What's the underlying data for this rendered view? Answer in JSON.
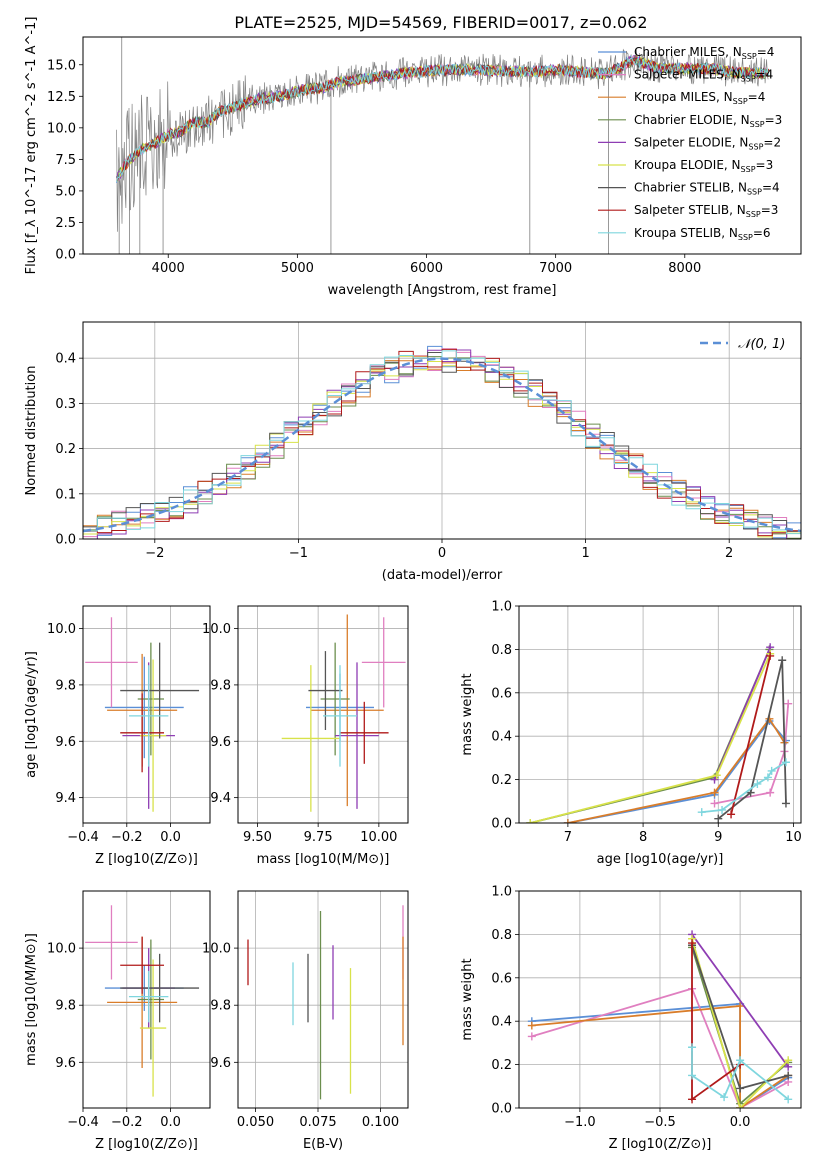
{
  "figure_title": "PLATE=2525, MJD=54569, FIBERID=0017, z=0.062",
  "series_styles": [
    {
      "name": "Chabrier MILES, N_SSP=4",
      "color": "#5B8FD6"
    },
    {
      "name": "Salpeter MILES, N_SSP=4",
      "color": "#E07FC0"
    },
    {
      "name": "Kroupa MILES, N_SSP=4",
      "color": "#D97D2A"
    },
    {
      "name": "Chabrier ELODIE, N_SSP=3",
      "color": "#6B8E4E"
    },
    {
      "name": "Salpeter ELODIE, N_SSP=2",
      "color": "#8E3DB3"
    },
    {
      "name": "Kroupa ELODIE, N_SSP=3",
      "color": "#D8E24A"
    },
    {
      "name": "Chabrier STELIB, N_SSP=4",
      "color": "#555555"
    },
    {
      "name": "Salpeter STELIB, N_SSP=3",
      "color": "#B01A1A"
    },
    {
      "name": "Kroupa STELIB, N_SSP=6",
      "color": "#7FD6DE"
    }
  ],
  "chart_data": [
    {
      "id": "spectrum",
      "type": "line",
      "xlabel": "wavelength [Angstrom, rest frame]",
      "ylabel": "Flux [f_λ 10^-17 erg cm^-2 s^-1 A^-1]",
      "xlim": [
        3340,
        8900
      ],
      "ylim": [
        0,
        17.2
      ],
      "xticks": [
        "4000",
        "5000",
        "6000",
        "7000",
        "8000"
      ],
      "xtick_values": [
        4000,
        5000,
        6000,
        7000,
        8000
      ],
      "yticks": [
        "0.0",
        "2.5",
        "5.0",
        "7.5",
        "10.0",
        "12.5",
        "15.0"
      ],
      "ytick_values": [
        0,
        2.5,
        5,
        7.5,
        10,
        12.5,
        15
      ],
      "legend": {
        "placement": "right",
        "entries": [
          {
            "label": "Chabrier MILES, N",
            "sub": "SSP",
            "suffix": "=4"
          },
          {
            "label": "Salpeter MILES, N",
            "sub": "SSP",
            "suffix": "=4"
          },
          {
            "label": "Kroupa MILES, N",
            "sub": "SSP",
            "suffix": "=4"
          },
          {
            "label": "Chabrier ELODIE, N",
            "sub": "SSP",
            "suffix": "=3"
          },
          {
            "label": "Salpeter ELODIE, N",
            "sub": "SSP",
            "suffix": "=2"
          },
          {
            "label": "Kroupa ELODIE, N",
            "sub": "SSP",
            "suffix": "=3"
          },
          {
            "label": "Chabrier STELIB, N",
            "sub": "SSP",
            "suffix": "=4"
          },
          {
            "label": "Salpeter STELIB, N",
            "sub": "SSP",
            "suffix": "=3"
          },
          {
            "label": "Kroupa STELIB, N",
            "sub": "SSP",
            "suffix": "=6"
          }
        ]
      },
      "observed_color": "#808080",
      "continuum_model": [
        [
          3600,
          6.0
        ],
        [
          3700,
          7.5
        ],
        [
          3800,
          8.3
        ],
        [
          3900,
          8.8
        ],
        [
          4000,
          9.5
        ],
        [
          4100,
          9.7
        ],
        [
          4200,
          10.5
        ],
        [
          4300,
          10.4
        ],
        [
          4400,
          11.3
        ],
        [
          4500,
          11.6
        ],
        [
          4600,
          12.0
        ],
        [
          4700,
          12.3
        ],
        [
          4800,
          12.4
        ],
        [
          4900,
          12.6
        ],
        [
          5000,
          12.9
        ],
        [
          5100,
          13.1
        ],
        [
          5200,
          13.2
        ],
        [
          5300,
          13.6
        ],
        [
          5400,
          13.7
        ],
        [
          5500,
          13.9
        ],
        [
          5600,
          14.0
        ],
        [
          5800,
          14.3
        ],
        [
          6000,
          14.5
        ],
        [
          6200,
          14.6
        ],
        [
          6400,
          14.6
        ],
        [
          6600,
          14.5
        ],
        [
          6800,
          14.4
        ],
        [
          7000,
          14.6
        ],
        [
          7200,
          14.4
        ],
        [
          7400,
          14.3
        ],
        [
          7600,
          15.4
        ],
        [
          7800,
          14.7
        ],
        [
          8000,
          14.7
        ],
        [
          8200,
          14.7
        ],
        [
          8400,
          14.4
        ],
        [
          8650,
          14.3
        ]
      ],
      "spikes": [
        [
          3620,
          0
        ],
        [
          3640,
          17.2
        ],
        [
          3700,
          0
        ],
        [
          3780,
          0
        ],
        [
          3960,
          0
        ],
        [
          5260,
          0
        ],
        [
          6800,
          0
        ],
        [
          7410,
          0
        ]
      ]
    },
    {
      "id": "residuals",
      "type": "histogram",
      "xlabel": "(data-model)/error",
      "ylabel": "Normed distribution",
      "xlim": [
        -2.5,
        2.5
      ],
      "ylim": [
        0,
        0.48
      ],
      "xticks": [
        "−2",
        "−1",
        "0",
        "1",
        "2"
      ],
      "xtick_values": [
        -2,
        -1,
        0,
        1,
        2
      ],
      "yticks": [
        "0.0",
        "0.1",
        "0.2",
        "0.3",
        "0.4"
      ],
      "ytick_values": [
        0,
        0.1,
        0.2,
        0.3,
        0.4
      ],
      "grid": true,
      "bin_edges_start": -2.5,
      "bin_width": 0.1,
      "reference_curve": {
        "label": "𝒩(0, 1)",
        "color": "#5B8FD6",
        "mu": 0,
        "sigma": 1
      },
      "legend_placement": "top-right"
    },
    {
      "id": "age_vs_Z",
      "type": "errorbar",
      "xlabel": "Z [log10(Z/Z⊙)]",
      "ylabel": "age [log10(age/yr)]",
      "xlim": [
        -0.4,
        0.18
      ],
      "ylim": [
        9.31,
        10.08
      ],
      "xticks": [
        "−0.4",
        "−0.2",
        "0.0"
      ],
      "xtick_values": [
        -0.4,
        -0.2,
        0
      ],
      "yticks": [
        "9.4",
        "9.6",
        "9.8",
        "10.0"
      ],
      "ytick_values": [
        9.4,
        9.6,
        9.8,
        10.0
      ],
      "points": [
        {
          "x": -0.12,
          "xerr": 0.18,
          "y": 9.72,
          "yerr": 0.18,
          "series": 0
        },
        {
          "x": -0.27,
          "xerr": 0.12,
          "y": 9.88,
          "yerr": 0.16,
          "series": 1
        },
        {
          "x": -0.13,
          "xerr": 0.16,
          "y": 9.71,
          "yerr": 0.2,
          "series": 2
        },
        {
          "x": -0.09,
          "xerr": 0.06,
          "y": 9.75,
          "yerr": 0.2,
          "series": 3
        },
        {
          "x": -0.1,
          "xerr": 0.12,
          "y": 9.62,
          "yerr": 0.26,
          "series": 4
        },
        {
          "x": -0.08,
          "xerr": 0.06,
          "y": 9.62,
          "yerr": 0.27,
          "series": 5
        },
        {
          "x": -0.05,
          "xerr": 0.18,
          "y": 9.78,
          "yerr": 0.17,
          "series": 6
        },
        {
          "x": -0.13,
          "xerr": 0.1,
          "y": 9.63,
          "yerr": 0.14,
          "series": 7
        },
        {
          "x": -0.1,
          "xerr": 0.09,
          "y": 9.69,
          "yerr": 0.18,
          "series": 8
        }
      ]
    },
    {
      "id": "age_vs_mass",
      "type": "errorbar",
      "xlabel": "mass [log10(M/M⊙)]",
      "ylabel": "",
      "xlim": [
        9.42,
        10.12
      ],
      "ylim": [
        9.31,
        10.08
      ],
      "xticks": [
        "9.50",
        "9.75",
        "10.00"
      ],
      "xtick_values": [
        9.5,
        9.75,
        10.0
      ],
      "yticks": [
        "9.4",
        "9.6",
        "9.8",
        "10.0"
      ],
      "ytick_values": [
        9.4,
        9.6,
        9.8,
        10.0
      ],
      "points": [
        {
          "x": 9.84,
          "xerr": 0.14,
          "y": 9.72,
          "yerr": 0.12,
          "series": 0
        },
        {
          "x": 10.02,
          "xerr": 0.09,
          "y": 9.88,
          "yerr": 0.16,
          "series": 1
        },
        {
          "x": 9.87,
          "xerr": 0.15,
          "y": 9.71,
          "yerr": 0.34,
          "series": 2
        },
        {
          "x": 9.82,
          "xerr": 0.06,
          "y": 9.75,
          "yerr": 0.2,
          "series": 3
        },
        {
          "x": 9.91,
          "xerr": 0.09,
          "y": 9.62,
          "yerr": 0.26,
          "series": 4
        },
        {
          "x": 9.72,
          "xerr": 0.12,
          "y": 9.61,
          "yerr": 0.26,
          "series": 5
        },
        {
          "x": 9.78,
          "xerr": 0.07,
          "y": 9.78,
          "yerr": 0.14,
          "series": 6
        },
        {
          "x": 9.94,
          "xerr": 0.1,
          "y": 9.63,
          "yerr": 0.11,
          "series": 7
        },
        {
          "x": 9.84,
          "xerr": 0.07,
          "y": 9.69,
          "yerr": 0.18,
          "series": 8
        }
      ]
    },
    {
      "id": "weight_vs_age",
      "type": "line",
      "xlabel": "age [log10(age/yr)]",
      "ylabel": "mass weight",
      "xlim": [
        6.35,
        10.1
      ],
      "ylim": [
        0,
        1
      ],
      "xticks": [
        "7",
        "8",
        "9",
        "10"
      ],
      "xtick_values": [
        7,
        8,
        9,
        10
      ],
      "yticks": [
        "0.0",
        "0.2",
        "0.4",
        "0.6",
        "0.8",
        "1.0"
      ],
      "ytick_values": [
        0,
        0.2,
        0.4,
        0.6,
        0.8,
        1.0
      ],
      "grid": true,
      "series": [
        {
          "style": 0,
          "points": [
            [
              7.0,
              0.0
            ],
            [
              8.95,
              0.13
            ],
            [
              9.68,
              0.47
            ],
            [
              9.9,
              0.38
            ]
          ]
        },
        {
          "style": 1,
          "points": [
            [
              8.95,
              0.09
            ],
            [
              9.69,
              0.14
            ],
            [
              9.88,
              0.33
            ],
            [
              9.93,
              0.55
            ]
          ]
        },
        {
          "style": 2,
          "points": [
            [
              7.0,
              0.0
            ],
            [
              8.95,
              0.14
            ],
            [
              9.68,
              0.48
            ],
            [
              9.88,
              0.37
            ]
          ]
        },
        {
          "style": 3,
          "points": [
            [
              6.5,
              0.0
            ],
            [
              8.95,
              0.21
            ],
            [
              9.68,
              0.8
            ]
          ]
        },
        {
          "style": 4,
          "points": [
            [
              8.95,
              0.2
            ],
            [
              9.69,
              0.81
            ]
          ]
        },
        {
          "style": 5,
          "points": [
            [
              6.5,
              0.0
            ],
            [
              8.98,
              0.22
            ],
            [
              9.69,
              0.78
            ]
          ]
        },
        {
          "style": 6,
          "points": [
            [
              9.0,
              0.02
            ],
            [
              9.43,
              0.14
            ],
            [
              9.85,
              0.75
            ],
            [
              9.9,
              0.09
            ]
          ]
        },
        {
          "style": 7,
          "points": [
            [
              9.17,
              0.04
            ],
            [
              9.69,
              0.77
            ]
          ]
        },
        {
          "style": 8,
          "points": [
            [
              8.78,
              0.05
            ],
            [
              9.05,
              0.06
            ],
            [
              9.52,
              0.18
            ],
            [
              9.66,
              0.21
            ],
            [
              9.71,
              0.24
            ],
            [
              9.9,
              0.28
            ]
          ]
        }
      ]
    },
    {
      "id": "mass_vs_Z",
      "type": "errorbar",
      "xlabel": "Z [log10(Z/Z⊙)]",
      "ylabel": "mass [log10(M/M⊙)]",
      "xlim": [
        -0.4,
        0.18
      ],
      "ylim": [
        9.44,
        10.2
      ],
      "xticks": [
        "−0.4",
        "−0.2",
        "0.0"
      ],
      "xtick_values": [
        -0.4,
        -0.2,
        0
      ],
      "yticks": [
        "9.6",
        "9.8",
        "10.0"
      ],
      "ytick_values": [
        9.6,
        9.8,
        10.0
      ],
      "points": [
        {
          "x": -0.12,
          "xerr": 0.18,
          "y": 9.86,
          "yerr": 0.08,
          "series": 0
        },
        {
          "x": -0.27,
          "xerr": 0.12,
          "y": 10.02,
          "yerr": 0.13,
          "series": 1
        },
        {
          "x": -0.13,
          "xerr": 0.16,
          "y": 9.81,
          "yerr": 0.23,
          "series": 2
        },
        {
          "x": -0.09,
          "xerr": 0.06,
          "y": 9.82,
          "yerr": 0.21,
          "series": 3
        },
        {
          "x": -0.1,
          "xerr": 0.12,
          "y": 9.86,
          "yerr": 0.14,
          "series": 4
        },
        {
          "x": -0.08,
          "xerr": 0.06,
          "y": 9.72,
          "yerr": 0.24,
          "series": 5
        },
        {
          "x": -0.05,
          "xerr": 0.18,
          "y": 9.86,
          "yerr": 0.12,
          "series": 6
        },
        {
          "x": -0.13,
          "xerr": 0.1,
          "y": 9.94,
          "yerr": 0.1,
          "series": 7
        },
        {
          "x": -0.1,
          "xerr": 0.09,
          "y": 9.83,
          "yerr": 0.09,
          "series": 8
        }
      ]
    },
    {
      "id": "mass_vs_ebv",
      "type": "errorbar",
      "xlabel": "E(B-V)",
      "ylabel": "",
      "xlim": [
        0.043,
        0.111
      ],
      "ylim": [
        9.44,
        10.2
      ],
      "xticks": [
        "0.050",
        "0.075",
        "0.100"
      ],
      "xtick_values": [
        0.05,
        0.075,
        0.1
      ],
      "yticks": [
        "9.6",
        "9.8",
        "10.0"
      ],
      "ytick_values": [
        9.6,
        9.8,
        10.0
      ],
      "points": [
        {
          "x": 0.065,
          "y": 9.84,
          "yerr": 0.11,
          "series": 8
        },
        {
          "x": 0.071,
          "y": 9.86,
          "yerr": 0.12,
          "series": 6
        },
        {
          "x": 0.076,
          "y": 9.8,
          "yerr": 0.33,
          "series": 3
        },
        {
          "x": 0.081,
          "y": 9.88,
          "yerr": 0.13,
          "series": 4
        },
        {
          "x": 0.088,
          "y": 9.71,
          "yerr": 0.22,
          "series": 5
        },
        {
          "x": 0.047,
          "y": 9.95,
          "yerr": 0.08,
          "series": 7
        },
        {
          "x": 0.109,
          "y": 10.02,
          "yerr": 0.13,
          "series": 1
        },
        {
          "x": 0.109,
          "y": 9.85,
          "yerr": 0.19,
          "series": 2
        }
      ]
    },
    {
      "id": "weight_vs_Z",
      "type": "line",
      "xlabel": "Z [log10(Z/Z⊙)]",
      "ylabel": "mass weight",
      "xlim": [
        -1.38,
        0.38
      ],
      "ylim": [
        0,
        1
      ],
      "xticks": [
        "−1.0",
        "−0.5",
        "0.0"
      ],
      "xtick_values": [
        -1,
        -0.5,
        0
      ],
      "yticks": [
        "0.0",
        "0.2",
        "0.4",
        "0.6",
        "0.8",
        "1.0"
      ],
      "ytick_values": [
        0,
        0.2,
        0.4,
        0.6,
        0.8,
        1.0
      ],
      "grid": true,
      "series": [
        {
          "style": 0,
          "points": [
            [
              -1.3,
              0.4
            ],
            [
              0.0,
              0.48
            ],
            [
              0.0,
              0.0
            ],
            [
              0.3,
              0.14
            ]
          ]
        },
        {
          "style": 1,
          "points": [
            [
              -1.3,
              0.33
            ],
            [
              -0.3,
              0.55
            ],
            [
              0.0,
              0.0
            ],
            [
              0.3,
              0.12
            ]
          ]
        },
        {
          "style": 2,
          "points": [
            [
              -1.3,
              0.38
            ],
            [
              0.0,
              0.47
            ],
            [
              0.0,
              0.0
            ],
            [
              0.3,
              0.15
            ]
          ]
        },
        {
          "style": 3,
          "points": [
            [
              -0.3,
              0.74
            ],
            [
              0.0,
              0.02
            ],
            [
              0.3,
              0.21
            ]
          ]
        },
        {
          "style": 4,
          "points": [
            [
              -0.3,
              0.8
            ],
            [
              0.3,
              0.19
            ]
          ]
        },
        {
          "style": 5,
          "points": [
            [
              -0.3,
              0.78
            ],
            [
              0.0,
              0.0
            ],
            [
              0.3,
              0.22
            ]
          ]
        },
        {
          "style": 6,
          "points": [
            [
              -0.3,
              0.75
            ],
            [
              0.0,
              0.09
            ],
            [
              0.3,
              0.15
            ]
          ]
        },
        {
          "style": 7,
          "points": [
            [
              -0.3,
              0.76
            ],
            [
              -0.3,
              0.04
            ],
            [
              0.0,
              0.2
            ]
          ]
        },
        {
          "style": 8,
          "points": [
            [
              -0.3,
              0.28
            ],
            [
              -0.3,
              0.15
            ],
            [
              -0.1,
              0.05
            ],
            [
              0.0,
              0.22
            ],
            [
              0.3,
              0.04
            ]
          ]
        }
      ]
    }
  ]
}
